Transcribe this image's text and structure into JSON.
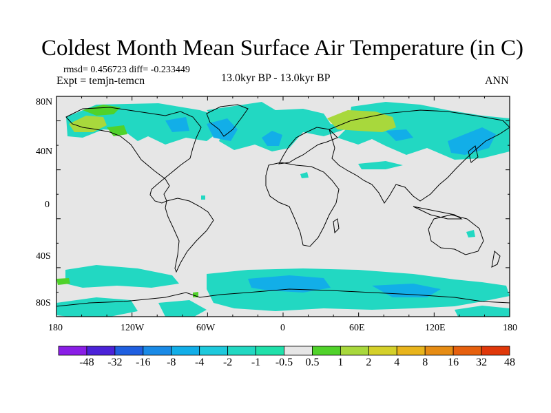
{
  "title": "Coldest Month Mean Surface Air Temperature (in C)",
  "stats": "rmsd= 0.456723 diff= -0.233449",
  "experiment": "Expt = temjn-temcn",
  "period": "13.0kyr BP - 13.0kyr BP",
  "season": "ANN",
  "map": {
    "lat_labels": [
      "80N",
      "40N",
      "0",
      "40S",
      "80S"
    ],
    "lon_labels": [
      "180",
      "120W",
      "60W",
      "0",
      "60E",
      "120E",
      "180"
    ]
  },
  "colorbar": {
    "colors": [
      "#8a1ee6",
      "#4b22d8",
      "#1f5fe0",
      "#1a8ae6",
      "#12aee8",
      "#1ec9dc",
      "#22d8c2",
      "#20e0aa",
      "#e6e6e6",
      "#50d22a",
      "#a8d83c",
      "#d4d02a",
      "#e8b41c",
      "#e68c14",
      "#e6600e",
      "#e0380a"
    ],
    "labels": [
      "-48",
      "-32",
      "-16",
      "-8",
      "-4",
      "-2",
      "-1",
      "-0.5",
      "0.5",
      "1",
      "2",
      "4",
      "8",
      "16",
      "32",
      "48"
    ]
  }
}
